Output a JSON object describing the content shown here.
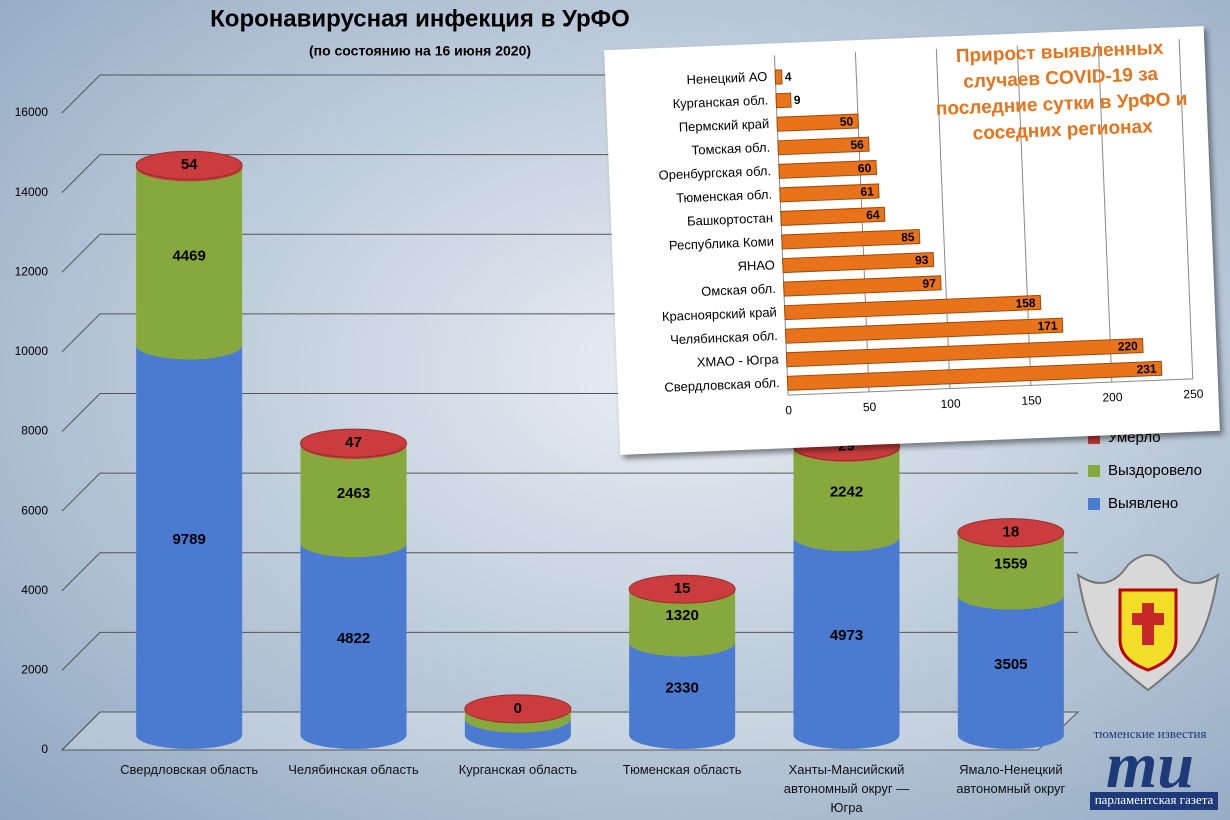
{
  "chart_data": [
    {
      "type": "bar",
      "stacked": true,
      "style": "cylinder",
      "title": "Коронавирусная инфекция в УрФО",
      "subtitle": "(по состоянию на 16 июня 2020)",
      "categories": [
        "Свердловская область",
        "Челябинская область",
        "Курганская область",
        "Тюменская область",
        "Ханты-Мансийский автономный округ — Югра",
        "Ямало-Ненецкий автономный округ"
      ],
      "series": [
        {
          "name": "Выявлено",
          "color": "#4a7bd0",
          "values": [
            9789,
            4822,
            413,
            2330,
            4973,
            3505
          ]
        },
        {
          "name": "Выздоровело",
          "color": "#86a83c",
          "values": [
            4469,
            2463,
            244,
            1320,
            2242,
            1559
          ]
        },
        {
          "name": "Умерло",
          "color": "#c0393a",
          "values": [
            54,
            47,
            0,
            15,
            29,
            18
          ]
        }
      ],
      "ylim": [
        0,
        16000
      ],
      "yticks": [
        0,
        2000,
        4000,
        6000,
        8000,
        10000,
        12000,
        14000,
        16000
      ],
      "grid": true,
      "legend": "right"
    },
    {
      "type": "bar",
      "orientation": "horizontal",
      "title": "Прирост выявленных случаев COVID-19 за последние сутки в УрФО и соседних регионах",
      "categories": [
        "Ненецкий АО",
        "Курганская обл.",
        "Пермский край",
        "Томская обл.",
        "Оренбургская обл.",
        "Тюменская обл.",
        "Башкортостан",
        "Республика Коми",
        "ЯНАО",
        "Омская обл.",
        "Красноярский край",
        "Челябинская обл.",
        "ХМАО - Югра",
        "Свердловская обл."
      ],
      "values": [
        4,
        9,
        50,
        56,
        60,
        61,
        64,
        85,
        93,
        97,
        158,
        171,
        220,
        231
      ],
      "color": "#e8731a",
      "xlim": [
        0,
        250
      ],
      "xticks": [
        0,
        50,
        100,
        150,
        200,
        250
      ],
      "grid": true
    }
  ],
  "logo": {
    "top": "тюменские известия",
    "mark": "ти",
    "bottom": "парламентская газета"
  }
}
